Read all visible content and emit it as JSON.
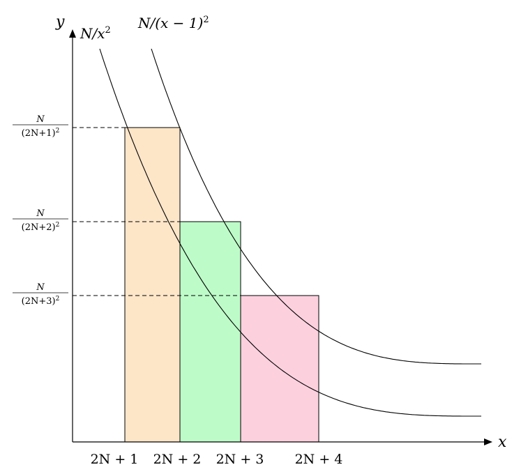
{
  "axes": {
    "x_label": "x",
    "y_label": "y"
  },
  "curves": [
    {
      "label_base": "N/x",
      "label_sup": "2"
    },
    {
      "label_base": "N/(x − 1)",
      "label_sup": "2"
    }
  ],
  "x_ticks": [
    "2N + 1",
    "2N + 2",
    "2N + 3",
    "2N + 4"
  ],
  "y_levels": [
    {
      "numerator": "N",
      "denominator_base": "(2N+1)",
      "denominator_sup": "2"
    },
    {
      "numerator": "N",
      "denominator_base": "(2N+2)",
      "denominator_sup": "2"
    },
    {
      "numerator": "N",
      "denominator_base": "(2N+3)",
      "denominator_sup": "2"
    }
  ],
  "rectangles": [
    {
      "fill": "#fde5c8"
    },
    {
      "fill": "#bdfcc8"
    },
    {
      "fill": "#fdd0de"
    }
  ]
}
